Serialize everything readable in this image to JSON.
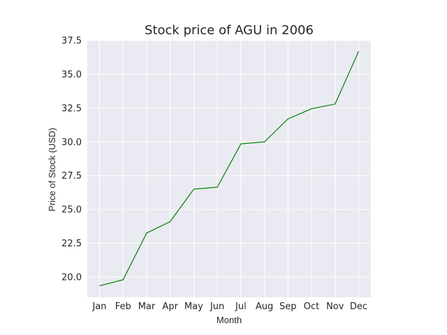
{
  "chart_data": {
    "type": "line",
    "title": "Stock price of AGU in 2006",
    "xlabel": "Month",
    "ylabel": "Price of Stock (USD)",
    "categories": [
      "Jan",
      "Feb",
      "Mar",
      "Apr",
      "May",
      "Jun",
      "Jul",
      "Aug",
      "Sep",
      "Oct",
      "Nov",
      "Dec"
    ],
    "values": [
      19.35,
      19.8,
      23.25,
      24.1,
      26.5,
      26.65,
      29.85,
      30.0,
      31.7,
      32.45,
      32.8,
      36.7
    ],
    "ylim": [
      18.5,
      37.5
    ],
    "yticks": [
      "20.0",
      "22.5",
      "25.0",
      "27.5",
      "30.0",
      "32.5",
      "35.0",
      "37.5"
    ],
    "grid": true,
    "colors": {
      "line": "#008000",
      "plot_bg": "#eaeaf2",
      "grid": "#ffffff"
    }
  }
}
